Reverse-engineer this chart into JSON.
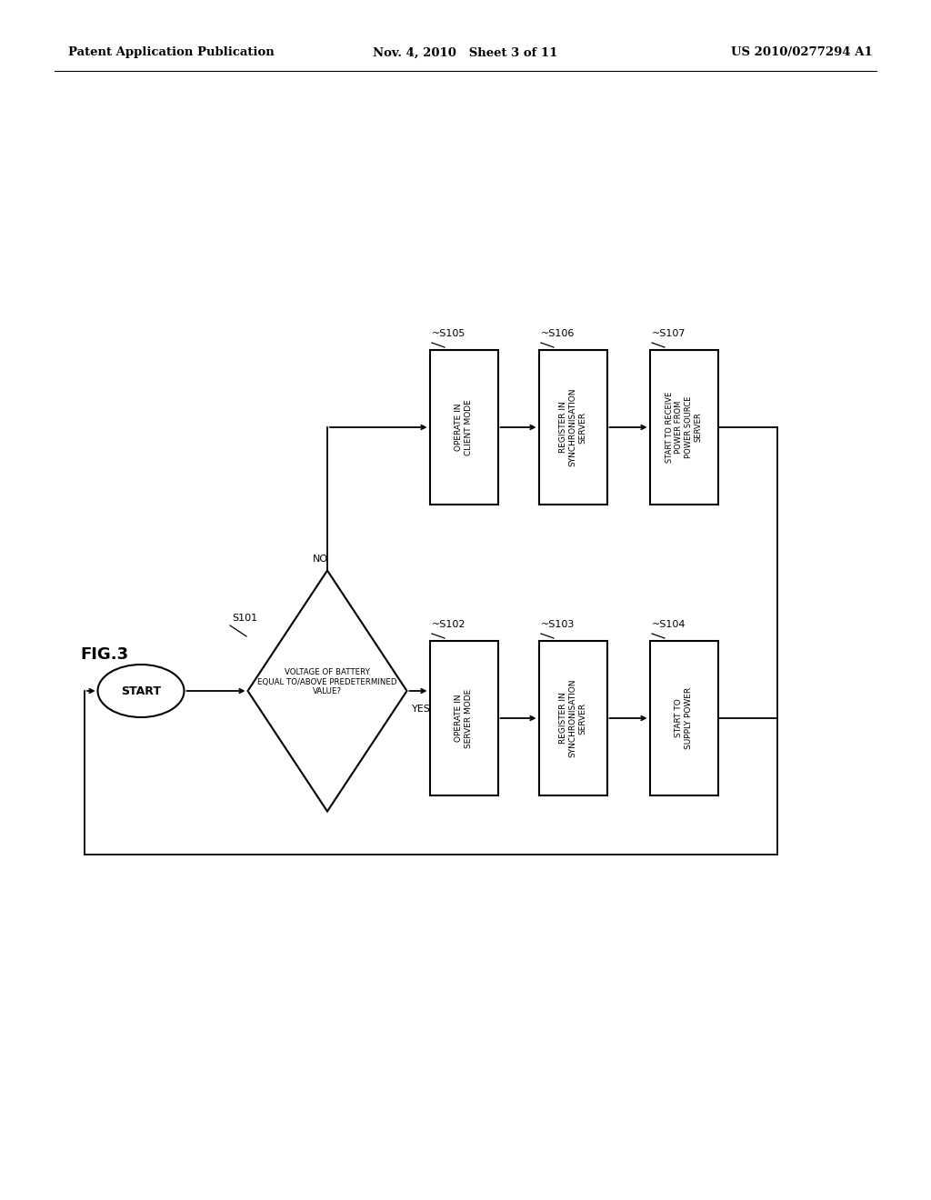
{
  "header_left": "Patent Application Publication",
  "header_center": "Nov. 4, 2010   Sheet 3 of 11",
  "header_right": "US 2010/0277294 A1",
  "title": "FIG.3",
  "bg_color": "#ffffff",
  "lc": "#000000",
  "start_label": "START",
  "diamond_label": "VOLTAGE OF BATTERY\nEQUAL TO/ABOVE PREDETERMINED\nVALUE?",
  "s101": "S101",
  "s102_label": "OPERATE IN\nSERVER MODE",
  "s102": "S102",
  "s103_label": "REGISTER IN\nSYNCHRONISATION\nSERVER",
  "s103": "S103",
  "s104_label": "START TO\nSUPPLY POWER",
  "s104": "S104",
  "s105_label": "OPERATE IN\nCLIENT MODE",
  "s105": "S105",
  "s106_label": "REGISTER IN\nSYNCHRONISATION\nSERVER",
  "s106": "S106",
  "s107_label": "START TO RECEIVE\nPOWER FROM\nPOWER SOURCE\nSERVER",
  "s107": "S107",
  "yes_label": "YES",
  "no_label": "NO"
}
